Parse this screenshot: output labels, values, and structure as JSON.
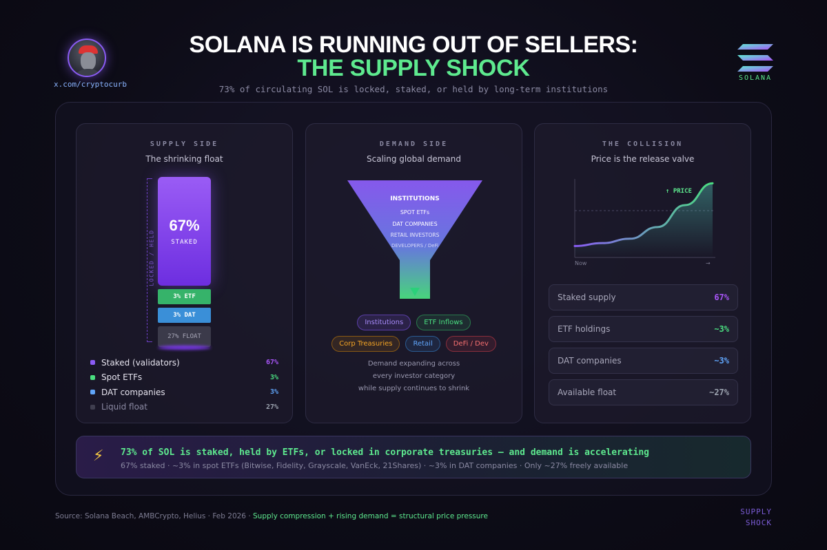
{
  "header": {
    "title_line1": "SOLANA IS RUNNING OUT OF SELLERS:",
    "title_line2": "THE SUPPLY SHOCK",
    "subtitle": "73% of circulating SOL is locked, staked, or held by long-term institutions",
    "handle": "x.com/cryptocurb",
    "logo_text": "SOLANA"
  },
  "supply": {
    "label": "SUPPLY SIDE",
    "subtitle": "The shrinking float",
    "axis_label": "LOCKED / HELD",
    "staked_pct": "67%",
    "staked_text": "STAKED",
    "etf_text": "3% ETF",
    "dat_text": "3% DAT",
    "float_text": "27% FLOAT",
    "legend": [
      {
        "label": "Staked (validators)",
        "value": "67%",
        "color": "#8b5cf6"
      },
      {
        "label": "Spot ETFs",
        "value": "3%",
        "color": "#4ade80"
      },
      {
        "label": "DAT companies",
        "value": "3%",
        "color": "#60a5fa"
      },
      {
        "label": "Liquid float",
        "value": "27%",
        "color": "#3f3e4f"
      }
    ]
  },
  "demand": {
    "label": "DEMAND SIDE",
    "subtitle": "Scaling global demand",
    "funnel_items": [
      "INSTITUTIONS",
      "SPOT ETFs",
      "DAT COMPANIES",
      "RETAIL INVESTORS",
      "DEVELOPERS / DeFi"
    ],
    "pills": [
      {
        "label": "Institutions",
        "color": "#a78bfa"
      },
      {
        "label": "ETF Inflows",
        "color": "#4ade80"
      },
      {
        "label": "Corp Treasuries",
        "color": "#f5a524"
      },
      {
        "label": "Retail",
        "color": "#60a5fa"
      },
      {
        "label": "DeFi / Dev",
        "color": "#f87171"
      }
    ],
    "note_lines": [
      "Demand expanding across",
      "every investor category",
      "while supply continues to shrink"
    ]
  },
  "collision": {
    "label": "THE COLLISION",
    "subtitle": "Price is the release valve",
    "price_label": "↑ PRICE",
    "x_start": "Now",
    "x_end": "→",
    "stats": [
      {
        "label": "Staked supply",
        "value": "67%",
        "color": "#a855f7"
      },
      {
        "label": "ETF holdings",
        "value": "~3%",
        "color": "#4ade80"
      },
      {
        "label": "DAT companies",
        "value": "~3%",
        "color": "#60a5fa"
      },
      {
        "label": "Available float",
        "value": "~27%",
        "color": "#9ca3af"
      }
    ]
  },
  "callout": {
    "icon": "⚡",
    "headline": "73% of SOL is staked, held by ETFs, or locked in corporate treasuries — and demand is accelerating",
    "detail": "67% staked · ~3% in spot ETFs (Bitwise, Fidelity, Grayscale, VanEck, 21Shares) · ~3% in DAT companies · Only ~27% freely available"
  },
  "footer": {
    "source": "Source: Solana Beach, AMBCrypto, Helius · Feb 2026 · ",
    "source_highlight": "Supply compression + rising demand = structural price pressure",
    "tag_line1": "SUPPLY",
    "tag_line2": "SHOCK"
  },
  "chart_data": [
    {
      "type": "bar",
      "title": "SUPPLY SIDE — The shrinking float",
      "stacked": true,
      "categories": [
        "Staked",
        "ETF",
        "DAT",
        "Float"
      ],
      "values": [
        67,
        3,
        3,
        27
      ],
      "unit": "%"
    },
    {
      "type": "area",
      "title": "THE COLLISION — Price is the release valve",
      "xlabel": "",
      "ylabel": "PRICE",
      "x_labels": [
        "Now",
        "→"
      ],
      "x": [
        0,
        1,
        2,
        3,
        4,
        5
      ],
      "y": [
        10,
        14,
        20,
        36,
        66,
        96
      ],
      "ylim": [
        0,
        100
      ],
      "grid": false
    }
  ]
}
